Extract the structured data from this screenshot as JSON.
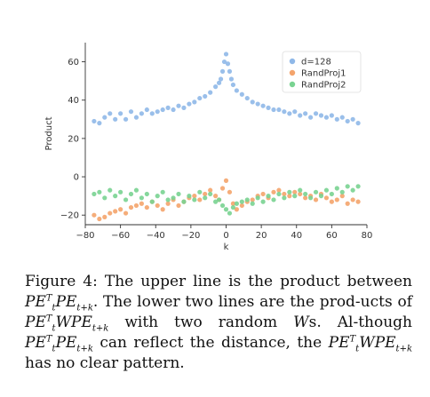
{
  "chart_data": {
    "type": "scatter",
    "xlabel": "k",
    "ylabel": "Product",
    "xlim": [
      -80,
      80
    ],
    "ylim": [
      -25,
      70
    ],
    "x_ticks": [
      -80,
      -60,
      -40,
      -20,
      0,
      20,
      40,
      60,
      80
    ],
    "y_ticks": [
      -20,
      0,
      20,
      40,
      60
    ],
    "grid": false,
    "legend_position": "top-right",
    "series": [
      {
        "name": "d=128",
        "color": "#8fb8e8",
        "x": [
          -75,
          -72,
          -69,
          -66,
          -63,
          -60,
          -57,
          -54,
          -51,
          -48,
          -45,
          -42,
          -39,
          -36,
          -33,
          -30,
          -27,
          -24,
          -21,
          -18,
          -15,
          -12,
          -9,
          -6,
          -4,
          -3,
          -2,
          -1,
          0,
          1,
          2,
          3,
          4,
          6,
          9,
          12,
          15,
          18,
          21,
          24,
          27,
          30,
          33,
          36,
          39,
          42,
          45,
          48,
          51,
          54,
          57,
          60,
          63,
          66,
          69,
          72,
          75
        ],
        "y": [
          29,
          28,
          31,
          33,
          30,
          33,
          30,
          34,
          31,
          33,
          35,
          33,
          34,
          35,
          36,
          35,
          37,
          36,
          38,
          39,
          41,
          42,
          44,
          47,
          49,
          51,
          55,
          60,
          64,
          59,
          55,
          51,
          48,
          45,
          43,
          41,
          39,
          38,
          37,
          36,
          35,
          35,
          34,
          33,
          34,
          32,
          33,
          31,
          33,
          32,
          31,
          32,
          30,
          31,
          29,
          30,
          28
        ]
      },
      {
        "name": "RandProj1",
        "color": "#f4a46c",
        "x": [
          -75,
          -72,
          -69,
          -66,
          -63,
          -60,
          -57,
          -54,
          -51,
          -48,
          -45,
          -42,
          -39,
          -36,
          -33,
          -30,
          -27,
          -24,
          -21,
          -18,
          -15,
          -12,
          -9,
          -6,
          -4,
          -2,
          0,
          2,
          4,
          6,
          9,
          12,
          15,
          18,
          21,
          24,
          27,
          30,
          33,
          36,
          39,
          42,
          45,
          48,
          51,
          54,
          57,
          60,
          63,
          66,
          69,
          72,
          75
        ],
        "y": [
          -20,
          -22,
          -21,
          -19,
          -18,
          -17,
          -19,
          -16,
          -15,
          -14,
          -16,
          -13,
          -15,
          -17,
          -14,
          -12,
          -15,
          -13,
          -11,
          -10,
          -12,
          -9,
          -7,
          -10,
          -12,
          -6,
          -2,
          -8,
          -14,
          -17,
          -15,
          -13,
          -12,
          -10,
          -9,
          -11,
          -8,
          -7,
          -9,
          -10,
          -8,
          -9,
          -11,
          -10,
          -12,
          -9,
          -11,
          -13,
          -12,
          -10,
          -14,
          -12,
          -13
        ]
      },
      {
        "name": "RandProj2",
        "color": "#79d391",
        "x": [
          -75,
          -72,
          -69,
          -66,
          -63,
          -60,
          -57,
          -54,
          -51,
          -48,
          -45,
          -42,
          -39,
          -36,
          -33,
          -30,
          -27,
          -24,
          -21,
          -18,
          -15,
          -12,
          -9,
          -6,
          -4,
          -2,
          0,
          2,
          4,
          6,
          9,
          12,
          15,
          18,
          21,
          24,
          27,
          30,
          33,
          36,
          39,
          42,
          45,
          48,
          51,
          54,
          57,
          60,
          63,
          66,
          69,
          72,
          75
        ],
        "y": [
          -9,
          -8,
          -11,
          -7,
          -10,
          -8,
          -12,
          -9,
          -7,
          -11,
          -9,
          -13,
          -10,
          -8,
          -12,
          -11,
          -9,
          -13,
          -10,
          -12,
          -8,
          -11,
          -9,
          -13,
          -12,
          -15,
          -17,
          -19,
          -16,
          -14,
          -13,
          -12,
          -14,
          -11,
          -13,
          -10,
          -12,
          -9,
          -11,
          -8,
          -10,
          -7,
          -9,
          -11,
          -8,
          -10,
          -7,
          -9,
          -6,
          -8,
          -5,
          -7,
          -5
        ]
      }
    ]
  },
  "caption": {
    "prefix": "Figure 4:  The upper line is the product between",
    "pe": "PE",
    "sup_t": "T",
    "sub_t": "t",
    "sub_tk": "t+k",
    "w": "W",
    "s1": ".  The lower two lines are the prod-ucts of",
    "s2": "with two random",
    "s3": "s.  Al-though",
    "s4": "can reflect the distance, the",
    "s5": "has no clear pattern."
  }
}
